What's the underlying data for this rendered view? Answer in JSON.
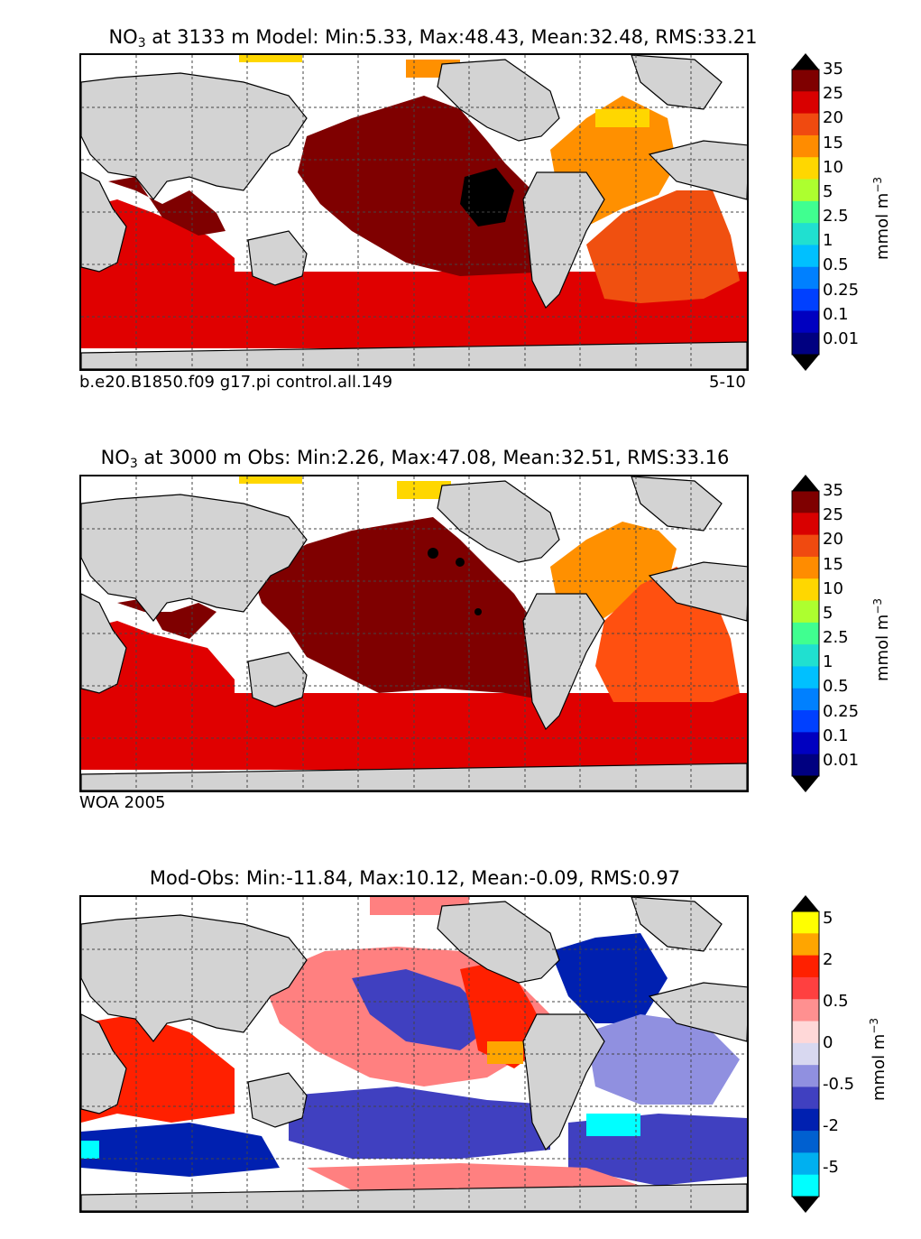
{
  "panels": [
    {
      "title_prefix": "NO",
      "title_sub": "3",
      "title_rest": " at 3133 m Model: Min:5.33, Max:48.43, Mean:32.48, RMS:33.21",
      "caption_left": "b.e20.B1850.f09 g17.pi control.all.149",
      "caption_right": "5-10",
      "colorbar": {
        "ticks": [
          "35",
          "25",
          "20",
          "15",
          "10",
          "5",
          "2.5",
          "1",
          "0.5",
          "0.25",
          "0.1",
          "0.01"
        ],
        "colors": [
          "#7f0000",
          "#d90000",
          "#f04a10",
          "#ff8c00",
          "#ffd700",
          "#adff2f",
          "#40ff90",
          "#20e0d0",
          "#00c0ff",
          "#0080ff",
          "#0040ff",
          "#0000c0",
          "#000080"
        ],
        "top_arrow_color": "#000000",
        "bottom_arrow_color": "#000000"
      },
      "units": "mmol m",
      "units_sup": "−3"
    },
    {
      "title_prefix": "NO",
      "title_sub": "3",
      "title_rest": " at 3000 m Obs: Min:2.26, Max:47.08, Mean:32.51, RMS:33.16",
      "caption_left": "WOA 2005",
      "caption_right": "",
      "colorbar": {
        "ticks": [
          "35",
          "25",
          "20",
          "15",
          "10",
          "5",
          "2.5",
          "1",
          "0.5",
          "0.25",
          "0.1",
          "0.01"
        ],
        "colors": [
          "#7f0000",
          "#d90000",
          "#f04a10",
          "#ff8c00",
          "#ffd700",
          "#adff2f",
          "#40ff90",
          "#20e0d0",
          "#00c0ff",
          "#0080ff",
          "#0040ff",
          "#0000c0",
          "#000080"
        ],
        "top_arrow_color": "#000000",
        "bottom_arrow_color": "#000000"
      },
      "units": "mmol m",
      "units_sup": "−3"
    },
    {
      "title_prefix": "Mod-Obs: Min:-11.84, Max:10.12, Mean:-0.09, RMS:0.97",
      "title_sub": "",
      "title_rest": "",
      "caption_left": "",
      "caption_right": "",
      "colorbar": {
        "ticks": [
          "5",
          "2",
          "0.5",
          "0",
          "-0.5",
          "-2",
          "-5"
        ],
        "colors": [
          "#ffff00",
          "#ffa500",
          "#ff2000",
          "#ff4040",
          "#ff9090",
          "#ffd8d8",
          "#d8d8f0",
          "#9090e0",
          "#4040c0",
          "#0020b0",
          "#0060d0",
          "#00b0f0",
          "#00ffff"
        ],
        "top_arrow_color": "#000000",
        "bottom_arrow_color": "#000000"
      },
      "units": "mmol m",
      "units_sup": "−3"
    }
  ],
  "map_colors": {
    "land": "#d3d3d3",
    "no_data": "#ffffff",
    "grid": "#444444",
    "p1": {
      "pacific": "#7f0000",
      "southern": "#e00000",
      "indian": "#e00000",
      "indian_north": "#7f0000",
      "atlantic_north": "#ff9000",
      "atlantic_south": "#f05010",
      "arctic": "#ffd700",
      "hotspot": "#000000"
    },
    "p2": {
      "pacific": "#7f0000",
      "southern": "#e00000",
      "indian": "#e00000",
      "indian_north": "#7f0000",
      "atlantic_north": "#ff9000",
      "atlantic_south": "#ff5010",
      "arctic": "#ffd700",
      "hotspot": "#000000"
    },
    "p3": {
      "pos_strong": "#ff2000",
      "pos": "#ff8080",
      "neg": "#4040c0",
      "neg_weak": "#9090e0",
      "neg_strong": "#0020b0",
      "cyan": "#00ffff",
      "orange": "#ffa500"
    }
  }
}
